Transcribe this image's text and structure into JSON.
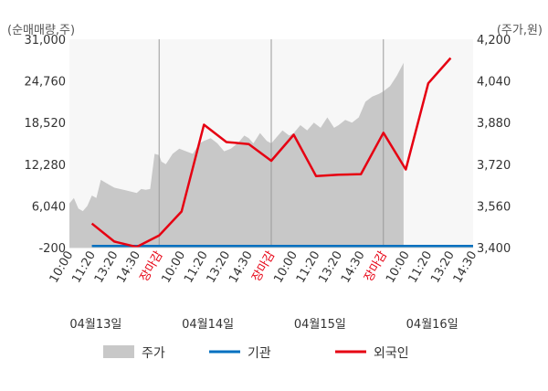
{
  "chart_data": {
    "type": "line",
    "left_axis_label": "(순매매량,주)",
    "right_axis_label": "(주가,원)",
    "left_ticks": [
      "31,000",
      "24,760",
      "18,520",
      "12,280",
      "6,040",
      "-200"
    ],
    "right_ticks": [
      "4,200",
      "4,040",
      "3,880",
      "3,720",
      "3,560",
      "3,400"
    ],
    "ylim_left": [
      -200,
      31000
    ],
    "ylim_right": [
      3400,
      4200
    ],
    "x_tick_labels": [
      "10:00",
      "11:20",
      "13:20",
      "14:30",
      "장마감",
      "10:00",
      "11:20",
      "13:20",
      "14:30",
      "장마감",
      "10:00",
      "11:20",
      "13:20",
      "14:30",
      "장마감",
      "10:00",
      "11:20",
      "13:20",
      "14:30"
    ],
    "close_label": "장마감",
    "dates": [
      "04월13일",
      "04월14일",
      "04월15일",
      "04월16일"
    ],
    "series": [
      {
        "name": "주가",
        "axis": "right",
        "type": "area",
        "color": "#c8c8c8",
        "x": [
          0,
          0.2,
          0.4,
          0.6,
          0.8,
          1.0,
          1.2,
          1.4,
          1.6,
          1.8,
          2.0,
          2.5,
          3.0,
          3.2,
          3.4,
          3.6,
          3.8,
          4.0,
          4.1,
          4.3,
          4.6,
          4.9,
          5.2,
          5.5,
          5.8,
          6.0,
          6.3,
          6.6,
          6.9,
          7.2,
          7.5,
          7.8,
          8.0,
          8.2,
          8.5,
          8.8,
          9.0,
          9.2,
          9.5,
          9.8,
          10.0,
          10.3,
          10.6,
          10.9,
          11.2,
          11.5,
          11.8,
          12.0,
          12.3,
          12.6,
          12.9,
          13.2,
          13.5,
          13.8,
          14.0,
          14.3,
          14.6,
          14.9
        ],
        "values": [
          3570,
          3590,
          3550,
          3540,
          3560,
          3600,
          3590,
          3660,
          3650,
          3640,
          3630,
          3620,
          3610,
          3625,
          3622,
          3625,
          3760,
          3755,
          3730,
          3720,
          3760,
          3780,
          3770,
          3760,
          3800,
          3810,
          3820,
          3800,
          3770,
          3780,
          3800,
          3830,
          3820,
          3800,
          3840,
          3810,
          3800,
          3820,
          3850,
          3830,
          3840,
          3870,
          3850,
          3880,
          3860,
          3900,
          3860,
          3870,
          3890,
          3880,
          3900,
          3960,
          3980,
          3990,
          4000,
          4020,
          4060,
          4110
        ]
      },
      {
        "name": "기관",
        "axis": "left",
        "color": "#0070c0",
        "x": [
          1,
          18
        ],
        "values": [
          0,
          0
        ]
      },
      {
        "name": "외국인",
        "axis": "left",
        "color": "#e60012",
        "x": [
          1,
          2,
          3,
          4,
          5,
          6,
          7,
          8,
          9,
          10,
          11,
          12,
          13,
          14,
          15,
          16,
          17
        ],
        "values": [
          3400,
          700,
          -100,
          1600,
          5200,
          18200,
          15600,
          15300,
          12800,
          16700,
          10500,
          10700,
          10800,
          17000,
          11500,
          24400,
          28200
        ]
      }
    ],
    "legend_position": "bottom",
    "grid": "vertical day separators"
  }
}
